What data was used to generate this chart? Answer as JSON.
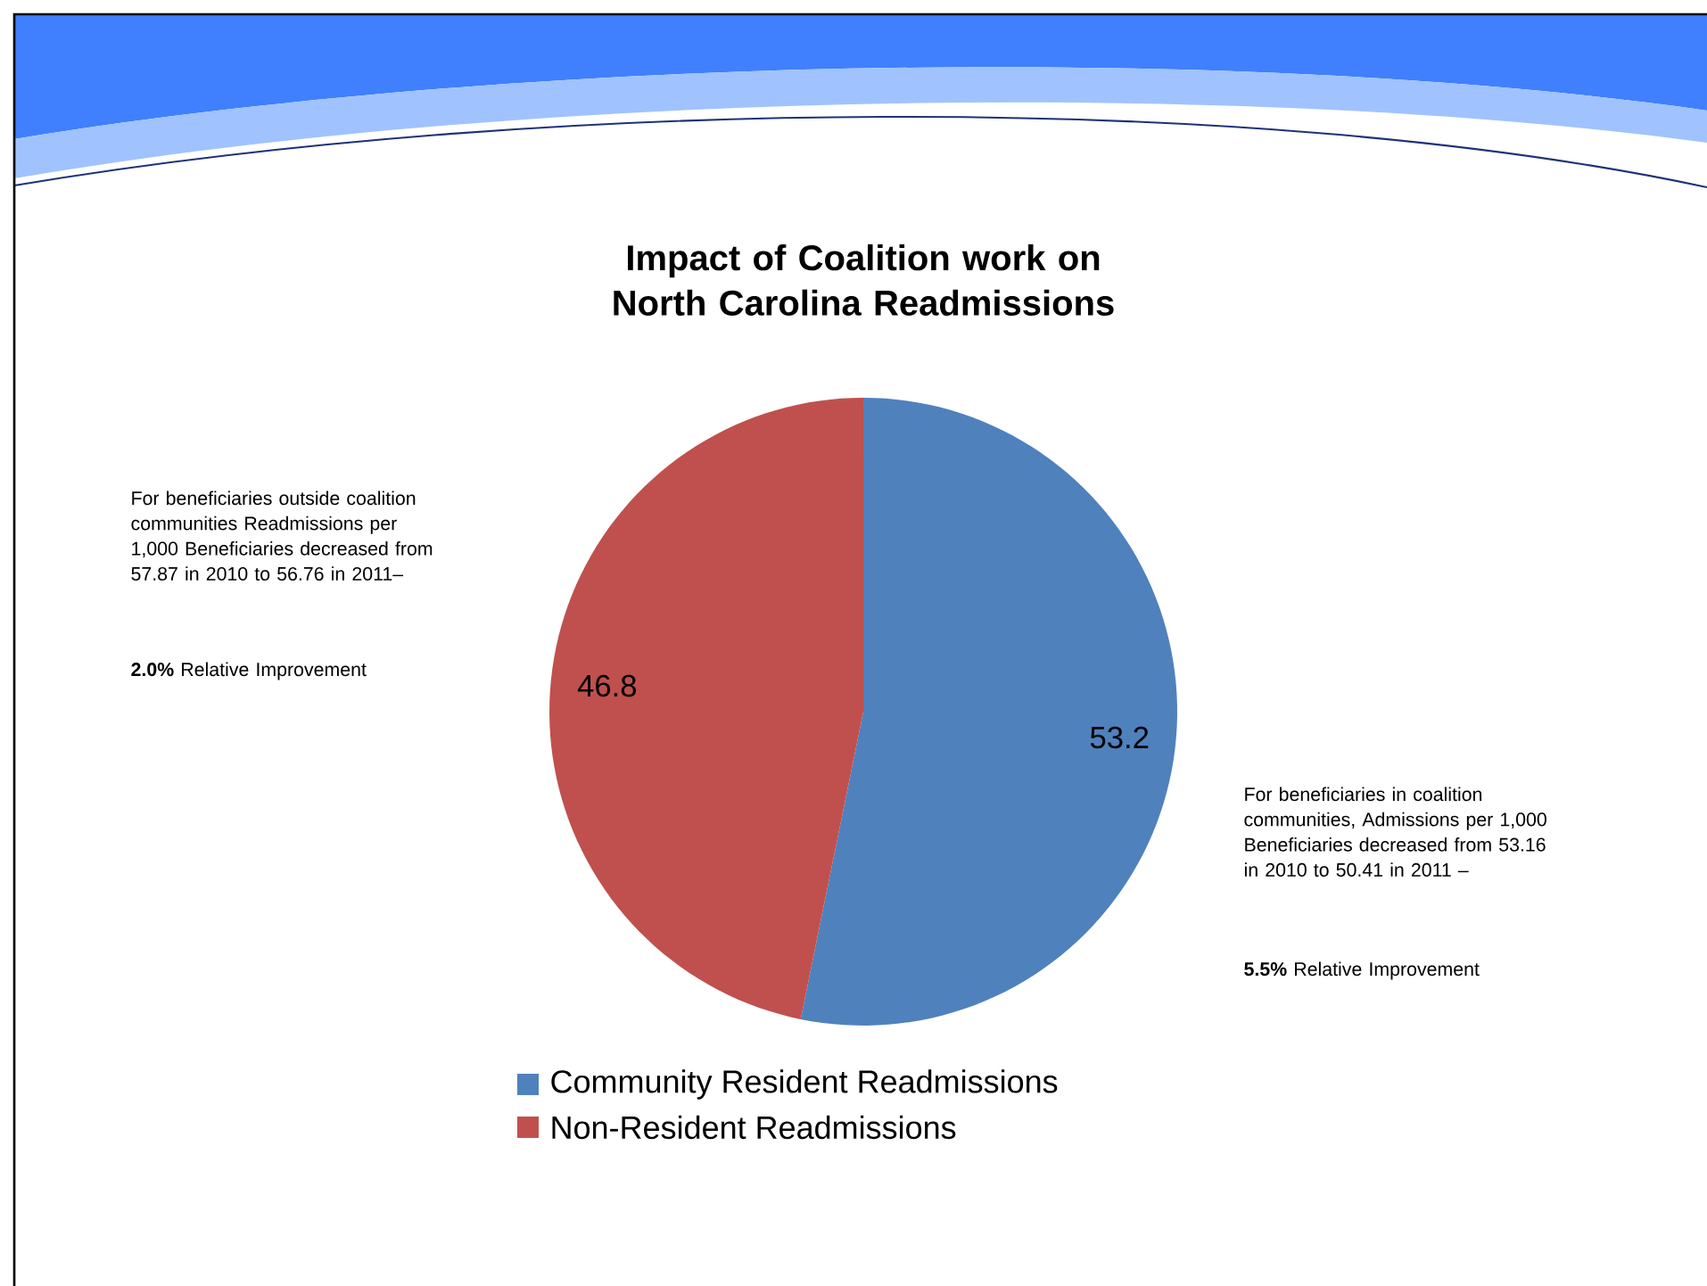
{
  "chart_data": {
    "type": "pie",
    "title": "Impact of Coalition work on North Carolina Readmissions",
    "categories": [
      "Community Resident Readmissions",
      "Non-Resident Readmissions"
    ],
    "values": [
      53.2,
      46.8
    ],
    "colors": [
      "#4f81bd",
      "#c0504d"
    ],
    "data_labels": true,
    "legend": "bottom",
    "annotations": [
      "For beneficiaries outside coalition communities Readmissions per 1,000 Beneficiaries decreased from 57.87 in 2010 to 56.76 in 2011–",
      "**2.0%** Relative Improvement",
      "For beneficiaries in coalition communities, Admissions per 1,000 Beneficiaries decreased from 53.16 in 2010 to 50.41 in 2011 –",
      "**5.5%** Relative Improvement"
    ]
  }
}
